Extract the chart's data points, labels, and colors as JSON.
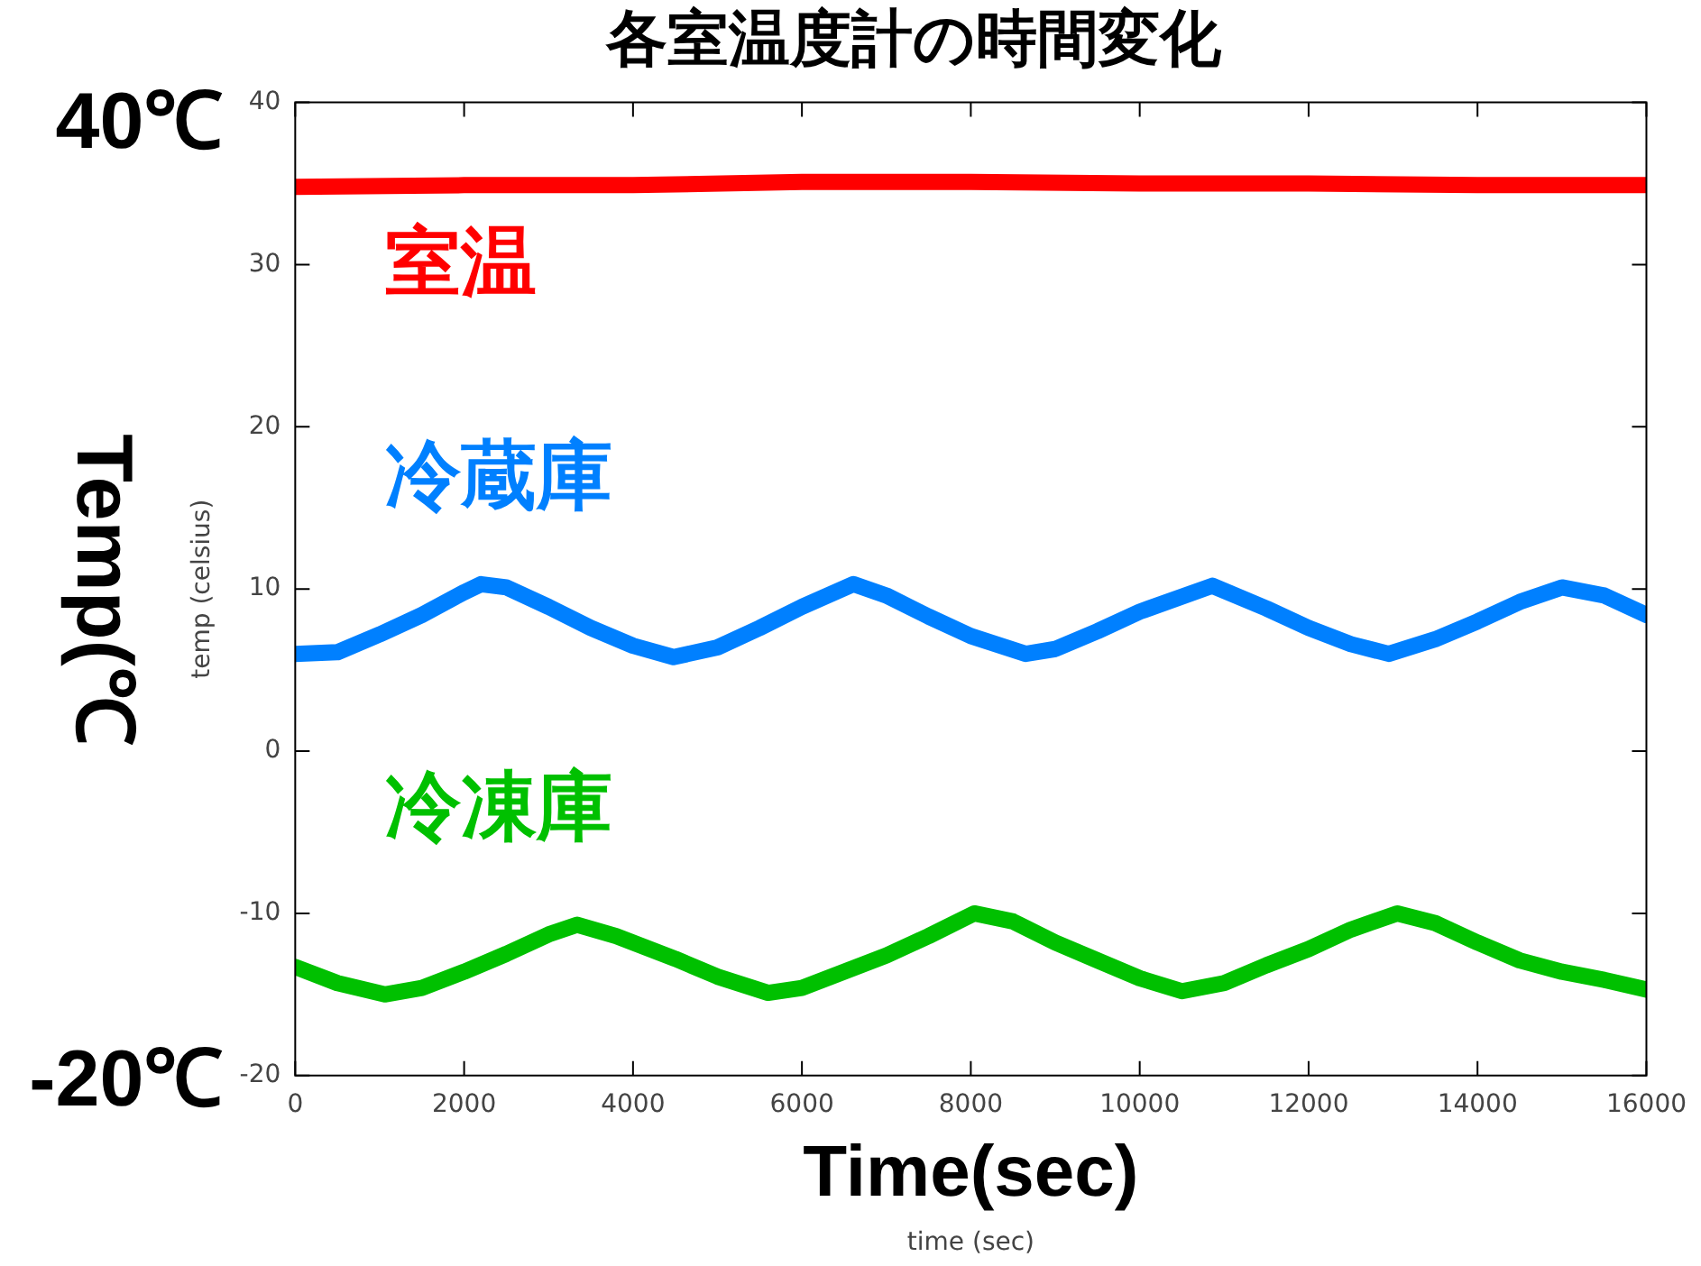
{
  "chart_data": {
    "type": "line",
    "title": "各室温度計の時間変化",
    "xlabel": "time (sec)",
    "ylabel": "temp (celsius)",
    "xlim": [
      0,
      16000
    ],
    "xticks": [
      0,
      2000,
      4000,
      6000,
      8000,
      10000,
      12000,
      14000,
      16000
    ],
    "ylim": [
      -20,
      40
    ],
    "yticks": [
      -20,
      -10,
      0,
      10,
      20,
      30,
      40
    ],
    "grid": false,
    "legend": false,
    "annotations": [
      "40℃",
      "-20℃",
      "Temp(℃",
      "Time(sec)"
    ],
    "series": [
      {
        "name": "室温",
        "color": "#ff0000",
        "x": [
          0,
          2000,
          4000,
          6000,
          8000,
          10000,
          12000,
          14000,
          16000
        ],
        "values": [
          34.8,
          34.9,
          34.9,
          35.1,
          35.1,
          35.0,
          35.0,
          34.9,
          34.9
        ]
      },
      {
        "name": "冷蔵庫",
        "color": "#0080ff",
        "x": [
          0,
          500,
          1000,
          1500,
          2000,
          2200,
          2500,
          3000,
          3500,
          4000,
          4480,
          5000,
          5500,
          6000,
          6610,
          7000,
          7500,
          8000,
          8650,
          9000,
          9500,
          10000,
          10860,
          11500,
          12000,
          12500,
          12950,
          13500,
          14000,
          14500,
          15000,
          15500,
          16000
        ],
        "values": [
          6.0,
          6.1,
          7.2,
          8.4,
          9.8,
          10.3,
          10.1,
          8.9,
          7.6,
          6.5,
          5.8,
          6.4,
          7.6,
          8.9,
          10.3,
          9.6,
          8.3,
          7.1,
          6.0,
          6.3,
          7.4,
          8.6,
          10.2,
          8.8,
          7.6,
          6.6,
          6.0,
          6.9,
          8.0,
          9.2,
          10.1,
          9.6,
          8.4
        ]
      },
      {
        "name": "冷凍庫",
        "color": "#00c000",
        "x": [
          0,
          500,
          1060,
          1500,
          2000,
          2500,
          3000,
          3340,
          3800,
          4500,
          5000,
          5600,
          6000,
          6500,
          7000,
          7500,
          8040,
          8500,
          9000,
          9500,
          10000,
          10500,
          11000,
          11500,
          12000,
          12500,
          13050,
          13500,
          14000,
          14500,
          15000,
          15500,
          16000
        ],
        "values": [
          -13.3,
          -14.3,
          -15.0,
          -14.6,
          -13.6,
          -12.5,
          -11.3,
          -10.7,
          -11.4,
          -12.8,
          -13.9,
          -14.9,
          -14.6,
          -13.6,
          -12.6,
          -11.4,
          -10.0,
          -10.5,
          -11.8,
          -12.9,
          -14.0,
          -14.8,
          -14.3,
          -13.2,
          -12.2,
          -11.0,
          -10.0,
          -10.6,
          -11.8,
          -12.9,
          -13.6,
          -14.1,
          -14.7
        ]
      }
    ]
  }
}
